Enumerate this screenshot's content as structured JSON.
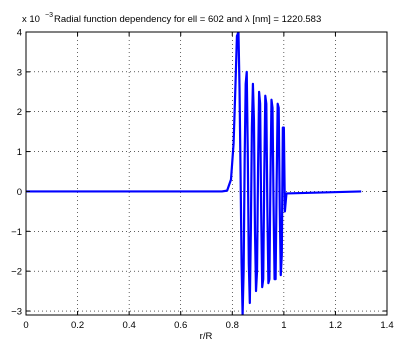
{
  "chart_data": {
    "type": "line",
    "title": "Radial function dependency for ell = 602 and λ [nm] = 1220.583",
    "xlabel": "r/R",
    "ylabel": "",
    "y_scale_label": {
      "base": "x 10",
      "exponent": "−3"
    },
    "xlim": [
      0,
      1.4
    ],
    "ylim": [
      -3.1,
      4.0
    ],
    "x_ticks": [
      0,
      0.2,
      0.4,
      0.6,
      0.8,
      1,
      1.2,
      1.4
    ],
    "x_tick_labels": [
      "0",
      "0.2",
      "0.4",
      "0.6",
      "0.8",
      "1",
      "1.2",
      "1.4"
    ],
    "y_ticks": [
      -3,
      -2,
      -1,
      0,
      1,
      2,
      3,
      4
    ],
    "y_tick_labels": [
      "−3",
      "−2",
      "−1",
      "0",
      "1",
      "2",
      "3",
      "4"
    ],
    "grid": true,
    "line_color": "#0000ff",
    "series": [
      {
        "values_note_units": "1e-3",
        "x": [
          0,
          0.76,
          0.78,
          0.795,
          0.805,
          0.812,
          0.818,
          0.824,
          0.828,
          0.832,
          0.836,
          0.84,
          0.844,
          0.848,
          0.852,
          0.856,
          0.86,
          0.864,
          0.868,
          0.872,
          0.876,
          0.88,
          0.884,
          0.888,
          0.892,
          0.896,
          0.9,
          0.904,
          0.908,
          0.912,
          0.916,
          0.92,
          0.924,
          0.928,
          0.932,
          0.936,
          0.94,
          0.944,
          0.948,
          0.952,
          0.956,
          0.96,
          0.964,
          0.968,
          0.972,
          0.976,
          0.98,
          0.984,
          0.988,
          0.992,
          0.996,
          1.0,
          1.004,
          1.01,
          1.3
        ],
        "y": [
          0,
          0,
          0.02,
          0.3,
          1.2,
          2.6,
          3.9,
          4.0,
          2.6,
          0.5,
          -1.8,
          -3.1,
          -2.0,
          0.8,
          2.7,
          3.0,
          1.0,
          -1.8,
          -2.8,
          -1.0,
          1.6,
          2.7,
          1.8,
          -1.0,
          -2.5,
          -2.0,
          0.6,
          2.5,
          2.2,
          -0.5,
          -2.4,
          -2.2,
          0.4,
          2.4,
          2.2,
          -0.4,
          -2.3,
          -2.2,
          0.3,
          2.3,
          2.1,
          -0.3,
          -2.2,
          -2.2,
          0.2,
          2.2,
          2.1,
          -0.4,
          -2.1,
          -1.6,
          1.6,
          1.6,
          -0.5,
          -0.05,
          0
        ]
      }
    ]
  }
}
